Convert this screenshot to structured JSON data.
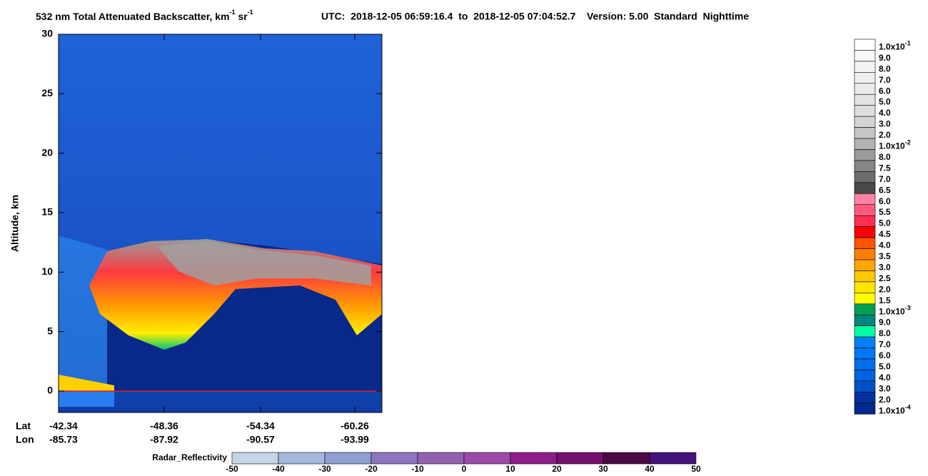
{
  "chart_data": {
    "type": "image",
    "title": {
      "main": "532 nm Total Attenuated Backscatter, km",
      "exp1": "-1",
      "unit2": " sr",
      "exp2": "-1"
    },
    "time_info": "UTC:  2018-12-05 06:59:16.4  to  2018-12-05 07:04:52.7    Version: 5.00  Standard  Nighttime",
    "y_label": "Altitude, km",
    "ylim": [
      -1.8,
      30
    ],
    "yticks": [
      0,
      5,
      10,
      15,
      20,
      25,
      30
    ],
    "lat_label": "Lat",
    "lon_label": "Lon",
    "lat": [
      "-42.34",
      "-48.36",
      "-54.34",
      "-60.26"
    ],
    "lon": [
      "-85.73",
      "-87.92",
      "-90.57",
      "-93.99"
    ],
    "colorbar": [
      {
        "label": "1.0x10",
        "exp": "-1",
        "color": "#ffffff"
      },
      {
        "label": "9.0",
        "color": "#f9f9f9"
      },
      {
        "label": "8.0",
        "color": "#f4f4f4"
      },
      {
        "label": "7.0",
        "color": "#efefef"
      },
      {
        "label": "6.0",
        "color": "#eaeaea"
      },
      {
        "label": "5.0",
        "color": "#e4e4e4"
      },
      {
        "label": "4.0",
        "color": "#dedede"
      },
      {
        "label": "3.0",
        "color": "#d4d4d4"
      },
      {
        "label": "2.0",
        "color": "#c6c6c6"
      },
      {
        "label": "1.0x10",
        "exp": "-2",
        "color": "#b3b3b3"
      },
      {
        "label": "8.0",
        "color": "#9b9b9b"
      },
      {
        "label": "7.5",
        "color": "#868686"
      },
      {
        "label": "7.0",
        "color": "#6c6c6c"
      },
      {
        "label": "6.5",
        "color": "#484848"
      },
      {
        "label": "6.0",
        "color": "#ff82a5"
      },
      {
        "label": "5.5",
        "color": "#ff5a7a"
      },
      {
        "label": "5.0",
        "color": "#ff2d50"
      },
      {
        "label": "4.5",
        "color": "#ff0000"
      },
      {
        "label": "4.0",
        "color": "#ff5500"
      },
      {
        "label": "3.5",
        "color": "#ff8000"
      },
      {
        "label": "3.0",
        "color": "#ffa500"
      },
      {
        "label": "2.5",
        "color": "#ffc800"
      },
      {
        "label": "2.0",
        "color": "#ffe600"
      },
      {
        "label": "1.5",
        "color": "#ffff00"
      },
      {
        "label": "1.0x10",
        "exp": "-3",
        "color": "#00a050"
      },
      {
        "label": "9.0",
        "color": "#00877d"
      },
      {
        "label": "8.0",
        "color": "#00ffa5"
      },
      {
        "label": "7.0",
        "color": "#0082ff"
      },
      {
        "label": "6.0",
        "color": "#0078f5"
      },
      {
        "label": "5.0",
        "color": "#006eeb"
      },
      {
        "label": "4.0",
        "color": "#0064e1"
      },
      {
        "label": "3.0",
        "color": "#0050c8"
      },
      {
        "label": "2.0",
        "color": "#0032a0"
      },
      {
        "label": "1.0x10",
        "exp": "-4",
        "color": "#002a8c"
      }
    ],
    "radar_label": "Radar_Reflectivity",
    "radar_ticks": [
      -50,
      -40,
      -30,
      -20,
      -10,
      0,
      10,
      20,
      30,
      40,
      50
    ],
    "radar_colors": [
      "#c5d4e6",
      "#a4b8dc",
      "#8c9fd0",
      "#8f76c0",
      "#9461b0",
      "#9a4aa8",
      "#8e1e8a",
      "#74106e",
      "#4a0a46",
      "#44127a"
    ]
  }
}
